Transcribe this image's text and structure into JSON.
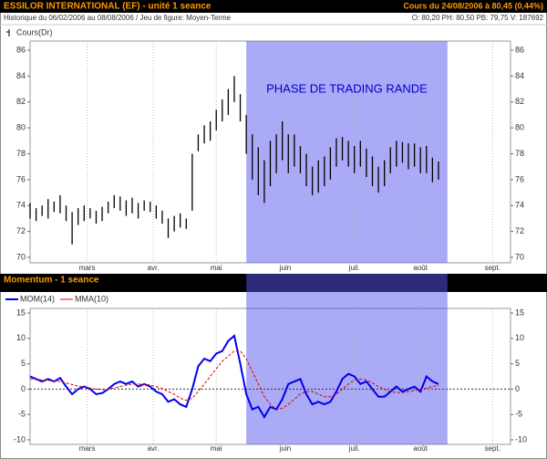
{
  "header": {
    "title": "ESSILOR INTERNATIONAL (EF) - unité 1 seance",
    "price": "Cours du 24/08/2006 à 80,45 (0,44%)",
    "history": "Historique du 06/02/2006 au 08/08/2006 / Jeu de figure: Moyen-Terme",
    "quote": "O: 80,20 PH: 80,50 PB: 79,75 V: 187692"
  },
  "chart_data": [
    {
      "type": "ohlc",
      "annotation": "PHASE DE TRADING RANDE",
      "x": [
        0,
        2,
        4,
        6,
        8,
        10,
        12,
        14,
        16,
        18,
        20,
        22,
        24,
        26,
        28,
        30,
        32,
        34,
        36,
        38,
        40,
        42,
        44,
        46,
        48,
        50,
        52,
        54,
        56,
        58,
        60,
        62,
        64,
        66,
        68,
        70,
        72,
        74,
        76,
        78,
        80,
        82,
        84,
        86,
        88,
        90,
        92,
        94,
        96,
        98,
        100,
        102,
        104,
        106,
        108,
        110,
        112,
        114,
        116,
        118,
        120,
        122,
        124,
        126,
        128,
        130,
        132,
        134,
        136
      ],
      "series": [
        {
          "name": "Cours(Dr)",
          "color": "#000000",
          "low": [
            73,
            72.8,
            73.2,
            73,
            73.5,
            73.4,
            72.8,
            71,
            72.5,
            72.8,
            73,
            72.6,
            72.8,
            73.4,
            73.8,
            73.6,
            73.2,
            73.4,
            73,
            73.6,
            73.5,
            73,
            72.6,
            71.5,
            72,
            72.3,
            72.2,
            73.6,
            78.2,
            78.8,
            79,
            79.8,
            80.5,
            81,
            82,
            80.5,
            78,
            76,
            74.8,
            74.2,
            75.5,
            76.5,
            77.5,
            76.5,
            77,
            76.5,
            75.5,
            74.8,
            75,
            75.5,
            76,
            77,
            77.5,
            77,
            76.5,
            77,
            76.2,
            75.5,
            75,
            75.5,
            76.5,
            77,
            77.3,
            76.8,
            77,
            76.5,
            76.5,
            75.8,
            76
          ],
          "high": [
            74.2,
            73.8,
            74,
            74.5,
            74.3,
            74.8,
            74,
            73.5,
            73.8,
            74,
            73.8,
            73.6,
            73.9,
            74.3,
            74.8,
            74.7,
            74.4,
            74.6,
            74.2,
            74.4,
            74.3,
            74,
            73.6,
            73,
            73.2,
            73.4,
            73,
            78,
            79.5,
            80.2,
            80.5,
            81.4,
            82.2,
            83,
            84,
            82.6,
            81,
            79.5,
            78.5,
            77.5,
            79,
            79.5,
            80.5,
            79.5,
            79.5,
            78.6,
            78,
            77,
            77.5,
            77.8,
            78.5,
            79.2,
            79.3,
            79,
            78.6,
            79,
            78.4,
            77.8,
            77,
            77.5,
            78.5,
            79,
            78.9,
            78.8,
            78.8,
            78.5,
            78.6,
            77.7,
            77.4
          ]
        }
      ],
      "highlight": {
        "from": 72,
        "to": 139,
        "color": "#5656ee"
      },
      "xlim": [
        0,
        160
      ],
      "xticks": [
        {
          "value": 19,
          "label": "mars"
        },
        {
          "value": 41,
          "label": "avr."
        },
        {
          "value": 62,
          "label": "mai"
        },
        {
          "value": 85,
          "label": "juin"
        },
        {
          "value": 108,
          "label": "juil."
        },
        {
          "value": 130,
          "label": "août"
        },
        {
          "value": 154,
          "label": "sept."
        }
      ],
      "ylim": [
        70,
        86
      ],
      "yticks": [
        70,
        72,
        74,
        76,
        78,
        80,
        82,
        84,
        86
      ],
      "grid": "x"
    },
    {
      "type": "line",
      "title": "Momentum - 1 seance",
      "x": [
        0,
        2,
        4,
        6,
        8,
        10,
        12,
        14,
        16,
        18,
        20,
        22,
        24,
        26,
        28,
        30,
        32,
        34,
        36,
        38,
        40,
        42,
        44,
        46,
        48,
        50,
        52,
        54,
        56,
        58,
        60,
        62,
        64,
        66,
        68,
        70,
        72,
        74,
        76,
        78,
        80,
        82,
        84,
        86,
        88,
        90,
        92,
        94,
        96,
        98,
        100,
        102,
        104,
        106,
        108,
        110,
        112,
        114,
        116,
        118,
        120,
        122,
        124,
        126,
        128,
        130,
        132,
        134,
        136
      ],
      "series": [
        {
          "name": "MOM(14)",
          "color": "#0000ee",
          "dashed": false,
          "values": [
            2.5,
            2,
            1.5,
            2,
            1.5,
            2.2,
            0.5,
            -1,
            0,
            0.5,
            0,
            -1,
            -0.8,
            0,
            1,
            1.5,
            1,
            1.5,
            0.5,
            1,
            0.5,
            -0.5,
            -1,
            -2.5,
            -2,
            -3,
            -3.5,
            0,
            4.5,
            6,
            5.5,
            7,
            7.5,
            9.5,
            10.5,
            5,
            -1,
            -4,
            -3.5,
            -5.5,
            -3.5,
            -4,
            -2,
            1,
            1.5,
            2,
            -1,
            -3,
            -2.5,
            -3,
            -2.5,
            -0.5,
            2,
            3,
            2.5,
            1,
            1.5,
            0,
            -1.5,
            -1.5,
            -0.5,
            0.5,
            -0.5,
            0,
            0.5,
            -0.5,
            2.5,
            1.5,
            1
          ]
        },
        {
          "name": "MMA(10)",
          "color": "#dd0000",
          "dashed": true,
          "values": [
            2,
            1.9,
            1.8,
            1.7,
            1.6,
            1.5,
            1.2,
            0.9,
            0.6,
            0.4,
            0.2,
            0,
            -0.1,
            0,
            0.2,
            0.5,
            0.8,
            1,
            1,
            0.9,
            0.8,
            0.5,
            0.1,
            -0.5,
            -1,
            -1.8,
            -2.2,
            -1.8,
            -0.5,
            1,
            2.5,
            4,
            5.5,
            6.5,
            7.5,
            7.5,
            6,
            3.5,
            1,
            -1.5,
            -3,
            -4,
            -3.8,
            -3,
            -2,
            -1,
            -0.5,
            -0.5,
            -1,
            -1.5,
            -1.5,
            -1,
            0,
            1,
            1.8,
            2,
            1.8,
            1.2,
            0.5,
            0,
            -0.5,
            -0.7,
            -0.7,
            -0.5,
            -0.3,
            0,
            0.2,
            0.5,
            0.7
          ]
        }
      ],
      "highlight": {
        "from": 72,
        "to": 139,
        "color": "#5656ee"
      },
      "xlim": [
        0,
        160
      ],
      "xticks": [
        {
          "value": 19,
          "label": "mars"
        },
        {
          "value": 41,
          "label": "avr."
        },
        {
          "value": 62,
          "label": "mai"
        },
        {
          "value": 85,
          "label": "juin"
        },
        {
          "value": 108,
          "label": "juil."
        },
        {
          "value": 130,
          "label": "août"
        },
        {
          "value": 154,
          "label": "sept."
        }
      ],
      "ylim": [
        -10,
        15
      ],
      "yticks": [
        -10,
        -5,
        0,
        5,
        10,
        15
      ],
      "grid": "x"
    }
  ]
}
